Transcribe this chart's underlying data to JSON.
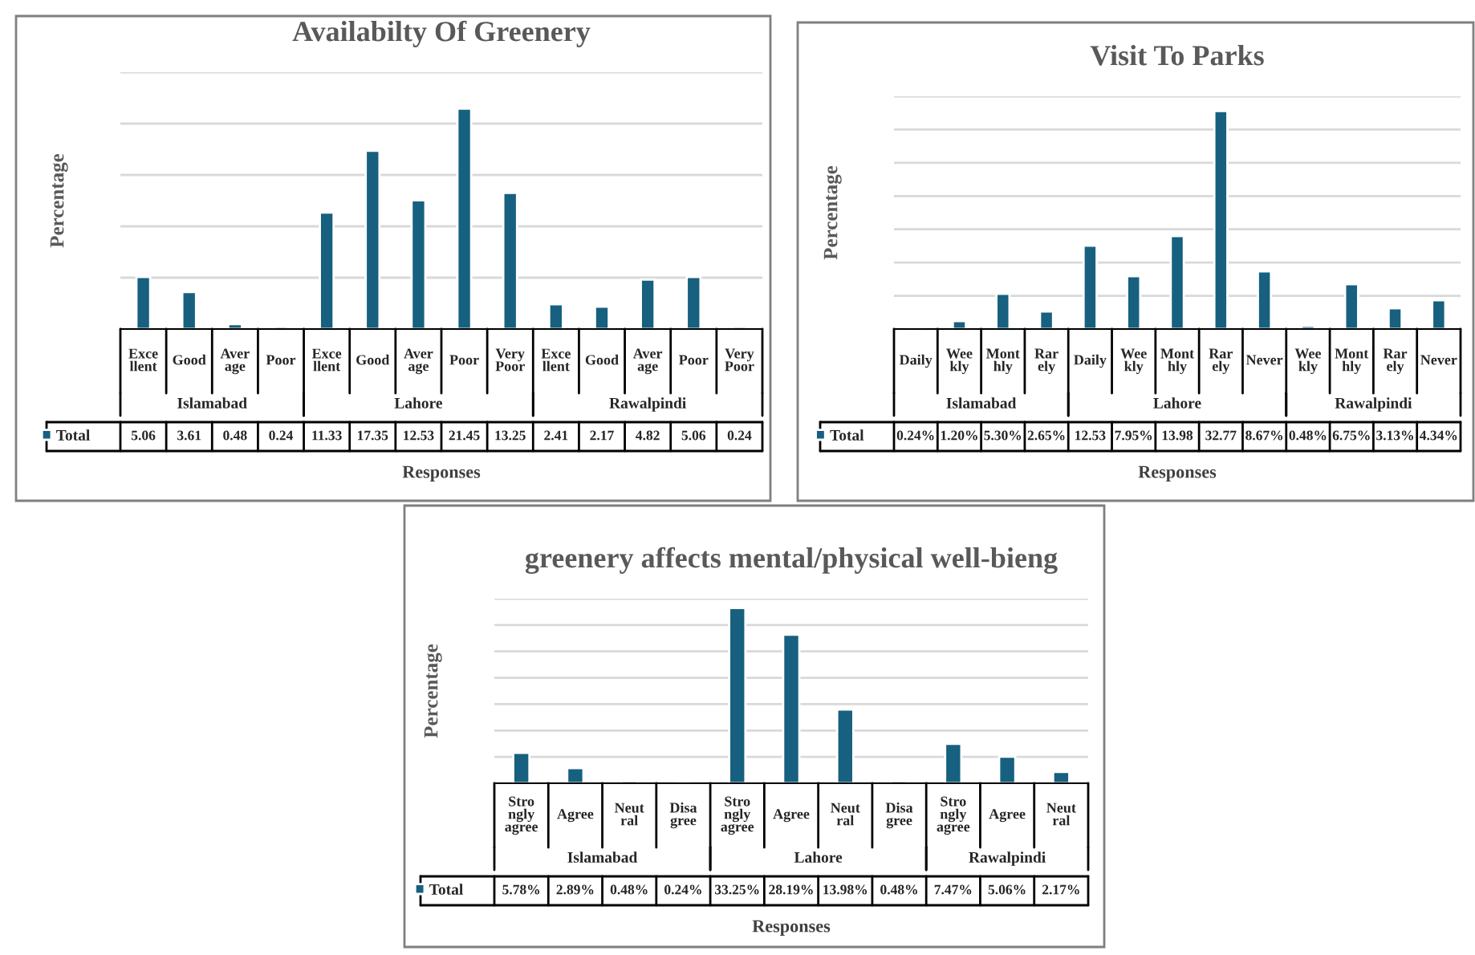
{
  "chart_data": [
    {
      "type": "bar",
      "title": "Availabilty Of Greenery",
      "xlabel": "Responses",
      "ylabel": "Percentage",
      "legend": "bottom",
      "grid": "y",
      "categories": [
        "Excellent",
        "Good",
        "Average",
        "Poor",
        "Excellent",
        "Good",
        "Average",
        "Poor",
        "Very Poor",
        "Excellent",
        "Good",
        "Average",
        "Poor",
        "Very Poor"
      ],
      "ylim": [
        0,
        25
      ],
      "yticks": [
        {
          "value": 0,
          "label": null
        },
        {
          "value": 5,
          "label": null
        },
        {
          "value": 10,
          "label": null
        },
        {
          "value": 15,
          "label": null
        },
        {
          "value": 20,
          "label": null
        },
        {
          "value": 25,
          "label": null
        }
      ],
      "annotations": [
        "Islamabad",
        "Lahore",
        "Rawalpindi"
      ],
      "series": [
        {
          "name": "Total",
          "color": "#17607f",
          "values": [
            5.06,
            3.61,
            0.48,
            0.24,
            11.33,
            17.35,
            12.53,
            21.45,
            13.25,
            2.41,
            2.17,
            4.82,
            5.06,
            0.24
          ],
          "value_labels": [
            "5.06",
            "3.61",
            "0.48",
            "0.24",
            "11.33",
            "17.35",
            "12.53",
            "21.45",
            "13.25",
            "2.41",
            "2.17",
            "4.82",
            "5.06",
            "0.24"
          ]
        }
      ]
    },
    {
      "type": "bar",
      "title": "Visit To Parks",
      "xlabel": "Responses",
      "ylabel": "Percentage",
      "legend": "bottom",
      "grid": "y",
      "categories": [
        "Daily",
        "Weekly",
        "Monthly",
        "Rarely",
        "Daily",
        "Weekly",
        "Monthly",
        "Rarely",
        "Never",
        "Weekly",
        "Monthly",
        "Rarely",
        "Never"
      ],
      "ylim": [
        0,
        35
      ],
      "yticks": [
        {
          "value": 0,
          "label": null
        },
        {
          "value": 5,
          "label": null
        },
        {
          "value": 10,
          "label": null
        },
        {
          "value": 15,
          "label": null
        },
        {
          "value": 20,
          "label": null
        },
        {
          "value": 25,
          "label": null
        },
        {
          "value": 30,
          "label": null
        },
        {
          "value": 35,
          "label": null
        }
      ],
      "annotations": [
        "Islamabad",
        "Lahore",
        "Rawalpindi"
      ],
      "series": [
        {
          "name": "Total",
          "color": "#17607f",
          "values": [
            0.24,
            1.2,
            5.3,
            2.65,
            12.53,
            7.95,
            13.98,
            32.77,
            8.67,
            0.48,
            6.75,
            3.13,
            4.34
          ],
          "value_labels": [
            "0.24%",
            "1.20%",
            "5.30%",
            "2.65%",
            "12.53",
            "7.95%",
            "13.98",
            "32.77",
            "8.67%",
            "0.48%",
            "6.75%",
            "3.13%",
            "4.34%"
          ]
        }
      ]
    },
    {
      "type": "bar",
      "title": "greenery affects mental/physical well-bieng",
      "xlabel": "Responses",
      "ylabel": "Percentage",
      "legend": "bottom",
      "grid": "y",
      "categories": [
        "Strongly agree",
        "Agree",
        "Neutral",
        "Disagree",
        "Strongly agree",
        "Agree",
        "Neutral",
        "Disagree",
        "Strongly agree",
        "Agree",
        "Neutral"
      ],
      "ylim": [
        0,
        35
      ],
      "yticks": [
        {
          "value": 0,
          "label": null
        },
        {
          "value": 5,
          "label": null
        },
        {
          "value": 10,
          "label": null
        },
        {
          "value": 15,
          "label": null
        },
        {
          "value": 20,
          "label": null
        },
        {
          "value": 25,
          "label": null
        },
        {
          "value": 30,
          "label": null
        },
        {
          "value": 35,
          "label": null
        }
      ],
      "annotations": [
        "Islamabad",
        "Lahore",
        "Rawalpindi"
      ],
      "series": [
        {
          "name": "Total",
          "color": "#17607f",
          "values": [
            5.78,
            2.89,
            0.48,
            0.24,
            33.25,
            28.19,
            13.98,
            0.48,
            7.47,
            5.06,
            2.17
          ],
          "value_labels": [
            "5.78%",
            "2.89%",
            "0.48%",
            "0.24%",
            "33.25%",
            "28.19%",
            "13.98%",
            "0.48%",
            "7.47%",
            "5.06%",
            "2.17%"
          ]
        }
      ]
    }
  ]
}
